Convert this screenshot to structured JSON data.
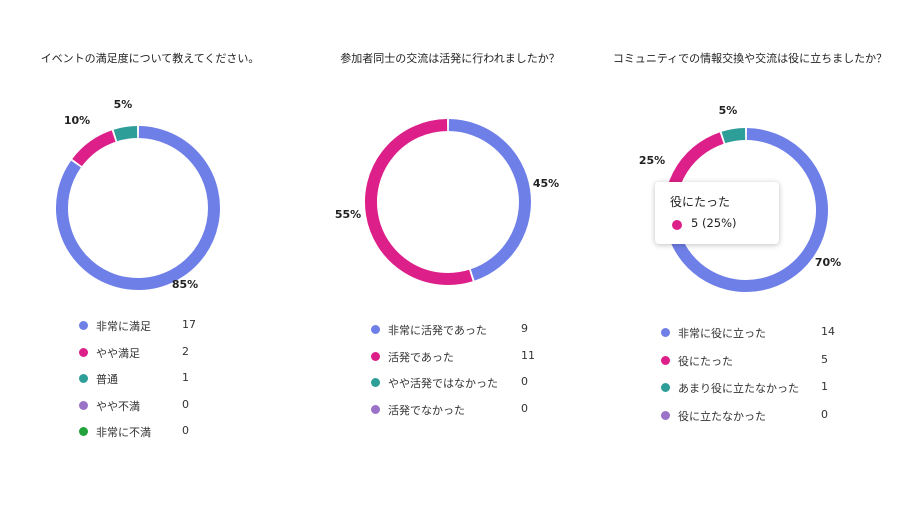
{
  "chart_data": [
    {
      "type": "pie",
      "title": "イベントの満足度について教えてください。",
      "series": [
        {
          "name": "非常に満足",
          "value": 17,
          "percent_label": "85%",
          "color": "#6f7fe8"
        },
        {
          "name": "やや満足",
          "value": 2,
          "percent_label": "10%",
          "color": "#dd1f89"
        },
        {
          "name": "普通",
          "value": 1,
          "percent_label": "5%",
          "color": "#2e9e98"
        },
        {
          "name": "やや不満",
          "value": 0,
          "percent_label": "",
          "color": "#9a72c7"
        },
        {
          "name": "非常に不満",
          "value": 0,
          "percent_label": "",
          "color": "#21a23a"
        }
      ]
    },
    {
      "type": "pie",
      "title": "参加者同士の交流は活発に行われましたか？",
      "series": [
        {
          "name": "非常に活発であった",
          "value": 9,
          "percent_label": "45%",
          "color": "#6f7fe8"
        },
        {
          "name": "活発であった",
          "value": 11,
          "percent_label": "55%",
          "color": "#dd1f89"
        },
        {
          "name": "やや活発ではなかった",
          "value": 0,
          "percent_label": "",
          "color": "#2e9e98"
        },
        {
          "name": "活発でなかった",
          "value": 0,
          "percent_label": "",
          "color": "#9a72c7"
        }
      ]
    },
    {
      "type": "pie",
      "title": "コミュニティでの情報交換や交流は役に立ちましたか？",
      "series": [
        {
          "name": "非常に役に立った",
          "value": 14,
          "percent_label": "70%",
          "color": "#6f7fe8"
        },
        {
          "name": "役にたった",
          "value": 5,
          "percent_label": "25%",
          "color": "#dd1f89"
        },
        {
          "name": "あまり役に立たなかった",
          "value": 1,
          "percent_label": "5%",
          "color": "#2e9e98"
        },
        {
          "name": "役に立たなかった",
          "value": 0,
          "percent_label": "",
          "color": "#9a72c7"
        }
      ],
      "tooltip": {
        "title": "役にたった",
        "value": "5 (25%)",
        "color": "#dd1f89"
      }
    }
  ]
}
